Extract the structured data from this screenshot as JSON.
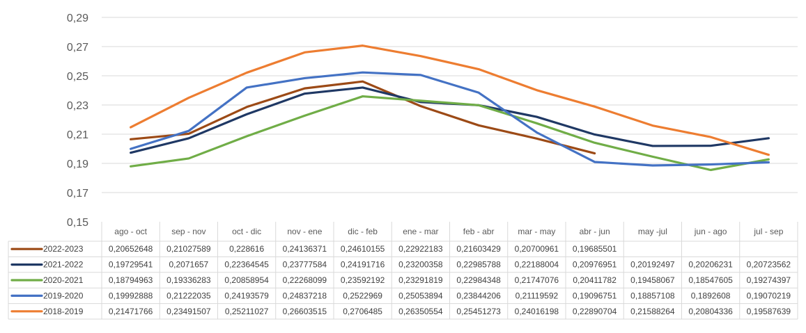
{
  "chart_data": {
    "type": "line",
    "title": "",
    "xlabel": "",
    "ylabel": "",
    "ylim": [
      0.15,
      0.29
    ],
    "yticks": [
      "0,15",
      "0,17",
      "0,19",
      "0,21",
      "0,23",
      "0,25",
      "0,27",
      "0,29"
    ],
    "ytick_values": [
      0.15,
      0.17,
      0.19,
      0.21,
      0.23,
      0.25,
      0.27,
      0.29
    ],
    "grid": true,
    "legend": "data-table-below",
    "categories": [
      "ago - oct",
      "sep - nov",
      "oct - dic",
      "nov - ene",
      "dic - feb",
      "ene - mar",
      "feb - abr",
      "mar - may",
      "abr - jun",
      "may -jul",
      "jun - ago",
      "jul - sep"
    ],
    "series": [
      {
        "name": "2022-2023",
        "color": "#9C4A16",
        "values": [
          0.20652648,
          0.21027589,
          0.228616,
          0.24136371,
          0.24610155,
          0.22922183,
          0.21603429,
          0.20700961,
          0.19685501,
          null,
          null,
          null
        ],
        "labels": [
          "0,20652648",
          "0,21027589",
          "0,228616",
          "0,24136371",
          "0,24610155",
          "0,22922183",
          "0,21603429",
          "0,20700961",
          "0,19685501",
          "",
          "",
          ""
        ]
      },
      {
        "name": "2021-2022",
        "color": "#1F3864",
        "values": [
          0.19729541,
          0.2071657,
          0.22364545,
          0.23777584,
          0.24191716,
          0.23200358,
          0.22985788,
          0.22188004,
          0.20976951,
          0.20192497,
          0.20206231,
          0.20723562
        ],
        "labels": [
          "0,19729541",
          "0,2071657",
          "0,22364545",
          "0,23777584",
          "0,24191716",
          "0,23200358",
          "0,22985788",
          "0,22188004",
          "0,20976951",
          "0,20192497",
          "0,20206231",
          "0,20723562"
        ]
      },
      {
        "name": "2020-2021",
        "color": "#70AD47",
        "values": [
          0.18794963,
          0.19336283,
          0.20858954,
          0.22268099,
          0.23592192,
          0.23291819,
          0.22984348,
          0.21747076,
          0.20411782,
          0.19458067,
          0.18547605,
          0.19274397
        ],
        "labels": [
          "0,18794963",
          "0,19336283",
          "0,20858954",
          "0,22268099",
          "0,23592192",
          "0,23291819",
          "0,22984348",
          "0,21747076",
          "0,20411782",
          "0,19458067",
          "0,18547605",
          "0,19274397"
        ]
      },
      {
        "name": "2019-2020",
        "color": "#4472C4",
        "values": [
          0.19992888,
          0.21222035,
          0.24193579,
          0.24837218,
          0.2522969,
          0.25053894,
          0.23844206,
          0.21119592,
          0.19096751,
          0.18857108,
          0.1892608,
          0.19070219
        ],
        "labels": [
          "0,19992888",
          "0,21222035",
          "0,24193579",
          "0,24837218",
          "0,2522969",
          "0,25053894",
          "0,23844206",
          "0,21119592",
          "0,19096751",
          "0,18857108",
          "0,1892608",
          "0,19070219"
        ]
      },
      {
        "name": "2018-2019",
        "color": "#ED7D31",
        "values": [
          0.21471766,
          0.23491507,
          0.25211027,
          0.26603515,
          0.2706485,
          0.26350554,
          0.25451273,
          0.24016198,
          0.22890704,
          0.21588264,
          0.20804336,
          0.19587639
        ],
        "labels": [
          "0,21471766",
          "0,23491507",
          "0,25211027",
          "0,26603515",
          "0,2706485",
          "0,26350554",
          "0,25451273",
          "0,24016198",
          "0,22890704",
          "0,21588264",
          "0,20804336",
          "0,19587639"
        ]
      }
    ]
  }
}
